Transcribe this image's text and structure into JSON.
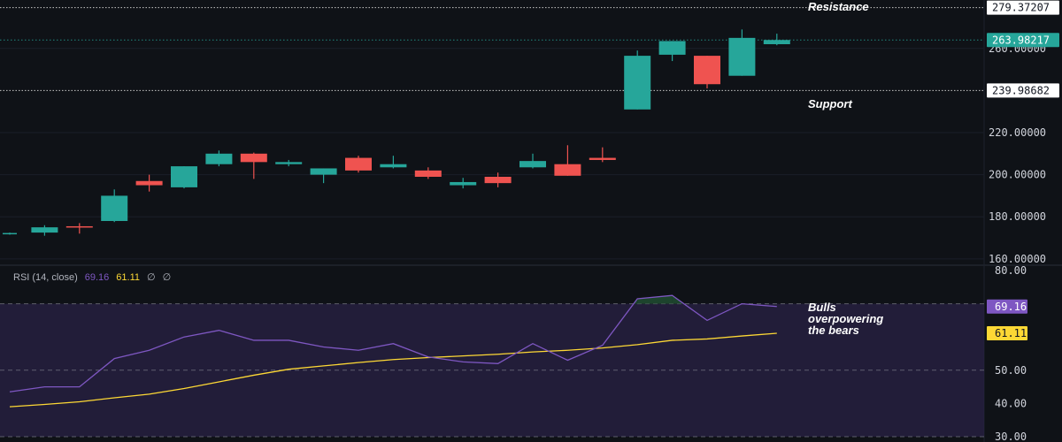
{
  "chart_data": [
    {
      "type": "candlestick",
      "ylim": [
        157,
        283
      ],
      "y_ticks": [
        {
          "value": 160,
          "label": "160.00000"
        },
        {
          "value": 180,
          "label": "180.00000"
        },
        {
          "value": 200,
          "label": "200.00000"
        },
        {
          "value": 220,
          "label": "220.00000"
        },
        {
          "value": 260,
          "label": "260.00000"
        }
      ],
      "candles": [
        {
          "o": 172.0,
          "h": 172.5,
          "l": 171.5,
          "c": 172.3
        },
        {
          "o": 172.5,
          "h": 176.0,
          "l": 171.0,
          "c": 175.0
        },
        {
          "o": 175.5,
          "h": 177.0,
          "l": 172.0,
          "c": 175.2
        },
        {
          "o": 178.0,
          "h": 193.0,
          "l": 177.5,
          "c": 190.0
        },
        {
          "o": 197.0,
          "h": 200.0,
          "l": 192.0,
          "c": 195.0
        },
        {
          "o": 194.0,
          "h": 204.0,
          "l": 193.5,
          "c": 204.0
        },
        {
          "o": 205.0,
          "h": 211.5,
          "l": 204.0,
          "c": 210.0
        },
        {
          "o": 210.0,
          "h": 210.5,
          "l": 198.0,
          "c": 206.0
        },
        {
          "o": 205.0,
          "h": 207.0,
          "l": 204.0,
          "c": 206.0
        },
        {
          "o": 200.0,
          "h": 203.0,
          "l": 196.0,
          "c": 203.0
        },
        {
          "o": 208.0,
          "h": 209.0,
          "l": 201.0,
          "c": 202.0
        },
        {
          "o": 203.5,
          "h": 209.0,
          "l": 203.0,
          "c": 205.0
        },
        {
          "o": 202.0,
          "h": 203.5,
          "l": 198.0,
          "c": 199.0
        },
        {
          "o": 195.0,
          "h": 198.5,
          "l": 193.5,
          "c": 196.5
        },
        {
          "o": 199.0,
          "h": 201.0,
          "l": 194.0,
          "c": 196.0
        },
        {
          "o": 203.5,
          "h": 210.0,
          "l": 203.0,
          "c": 206.5
        },
        {
          "o": 205.0,
          "h": 214.0,
          "l": 199.5,
          "c": 199.5
        },
        {
          "o": 208.0,
          "h": 213.0,
          "l": 206.0,
          "c": 207.0
        },
        {
          "o": 231.0,
          "h": 259.0,
          "l": 231.0,
          "c": 256.5
        },
        {
          "o": 257.0,
          "h": 263.5,
          "l": 254.0,
          "c": 263.5
        },
        {
          "o": 256.5,
          "h": 256.5,
          "l": 241.0,
          "c": 243.0
        },
        {
          "o": 247.0,
          "h": 269.0,
          "l": 247.0,
          "c": 265.0
        },
        {
          "o": 262.0,
          "h": 267.0,
          "l": 261.5,
          "c": 264.0
        }
      ],
      "levels": [
        {
          "name": "Resistance",
          "value": 279.37207,
          "label": "279.37207"
        },
        {
          "name": "Support",
          "value": 239.98682,
          "label": "239.98682"
        }
      ],
      "last_price": {
        "value": 263.98217,
        "label": "263.98217"
      },
      "annotations": {
        "resistance": "Resistance",
        "support": "Support"
      },
      "colors": {
        "up": "#26a69a",
        "down": "#ef5350",
        "level_line": "#c8c8c8",
        "last_price_line": "#26a69a"
      }
    },
    {
      "type": "line",
      "legend": {
        "title": "RSI (14, close)",
        "rsi_value": "69.16",
        "ma_value": "61.11",
        "extra1": "∅",
        "extra2": "∅"
      },
      "ylim": [
        30,
        80
      ],
      "y_ticks": [
        {
          "value": 80,
          "label": "80.00"
        },
        {
          "value": 50,
          "label": "50.00"
        },
        {
          "value": 40,
          "label": "40.00"
        },
        {
          "value": 30,
          "label": "30.00"
        }
      ],
      "bands": {
        "upper": 70,
        "middle": 50,
        "lower": 30
      },
      "rsi": [
        43.5,
        45.0,
        45.0,
        53.5,
        56.0,
        60.0,
        62.0,
        59.0,
        59.0,
        57.0,
        56.0,
        58.0,
        54.0,
        52.5,
        52.0,
        58.0,
        53.0,
        57.5,
        71.5,
        72.5,
        65.0,
        70.0,
        69.16
      ],
      "ma": [
        39.0,
        39.7,
        40.5,
        41.7,
        42.8,
        44.5,
        46.5,
        48.5,
        50.3,
        51.3,
        52.3,
        53.2,
        53.8,
        54.3,
        54.8,
        55.5,
        56.0,
        56.7,
        57.7,
        59.0,
        59.4,
        60.3,
        61.11
      ],
      "last_rsi_label": "69.16",
      "last_ma_label": "61.11",
      "annotation": [
        "Bulls",
        "overpowering",
        "the bears"
      ],
      "colors": {
        "rsi": "#7e57c2",
        "ma": "#fdd835",
        "band_fill": "#2a2146",
        "overbought_fill": "#1f4a30"
      }
    }
  ]
}
